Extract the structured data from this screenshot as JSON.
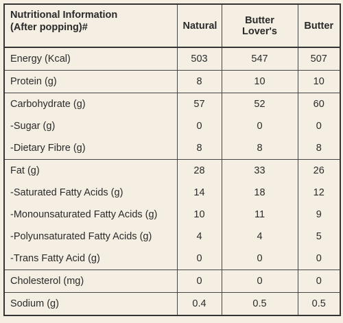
{
  "table": {
    "header": {
      "title": [
        "Nutritional  Information",
        "(After popping)#"
      ],
      "columns": [
        "Natural",
        "Butter Lover's",
        "Butter"
      ]
    },
    "groups": [
      [
        [
          "Energy (Kcal)",
          "503",
          "547",
          "507"
        ]
      ],
      [
        [
          "Protein (g)",
          "8",
          "10",
          "10"
        ]
      ],
      [
        [
          "Carbohydrate (g)",
          "57",
          "52",
          "60"
        ],
        [
          "-Sugar (g)",
          "0",
          "0",
          "0"
        ],
        [
          "-Dietary Fibre (g)",
          "8",
          "8",
          "8"
        ]
      ],
      [
        [
          "Fat (g)",
          "28",
          "33",
          "26"
        ],
        [
          "-Saturated Fatty Acids (g)",
          "14",
          "18",
          "12"
        ],
        [
          "-Monounsaturated Fatty Acids (g)",
          "10",
          "11",
          "9"
        ],
        [
          "-Polyunsaturated Fatty Acids (g)",
          "4",
          "4",
          "5"
        ],
        [
          "-Trans Fatty Acid (g)",
          "0",
          "0",
          "0"
        ]
      ],
      [
        [
          "Cholesterol (mg)",
          "0",
          "0",
          "0"
        ]
      ],
      [
        [
          "Sodium (g)",
          "0.4",
          "0.5",
          "0.5"
        ]
      ]
    ]
  }
}
